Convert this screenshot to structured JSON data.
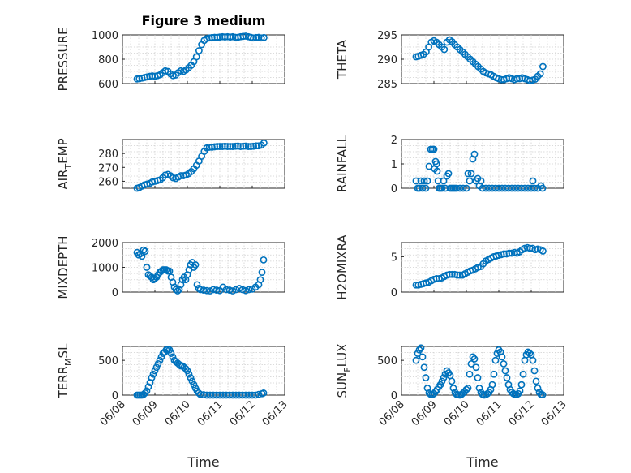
{
  "figure": {
    "title": "Figure 3 medium",
    "marker_color": "#0072BD",
    "xlabel": "Time"
  },
  "chart_data": [
    {
      "type": "scatter",
      "ylabel": "PRESSURE",
      "ylim": [
        600,
        1000
      ],
      "yticks": [
        600,
        800,
        1000
      ],
      "xlim": [
        "06/08",
        "06/13"
      ],
      "xticks": [
        "06/08",
        "06/09",
        "06/10",
        "06/11",
        "06/12",
        "06/13"
      ],
      "x": [
        8.45,
        8.52,
        8.6,
        8.68,
        8.76,
        8.84,
        8.92,
        9,
        9.08,
        9.16,
        9.24,
        9.32,
        9.4,
        9.48,
        9.56,
        9.64,
        9.72,
        9.8,
        9.88,
        9.96,
        10.04,
        10.12,
        10.2,
        10.28,
        10.36,
        10.44,
        10.52,
        10.6,
        10.68,
        10.76,
        10.84,
        10.92,
        11,
        11.08,
        11.16,
        11.24,
        11.32,
        11.4,
        11.48,
        11.56,
        11.64,
        11.72,
        11.8,
        11.88,
        11.96,
        12.04,
        12.12,
        12.2,
        12.28,
        12.36
      ],
      "y": [
        638,
        640,
        645,
        650,
        655,
        660,
        663,
        660,
        665,
        672,
        690,
        705,
        700,
        680,
        665,
        670,
        690,
        705,
        700,
        712,
        730,
        750,
        780,
        820,
        870,
        920,
        955,
        970,
        975,
        978,
        980,
        980,
        982,
        985,
        983,
        985,
        982,
        985,
        980,
        980,
        985,
        988,
        990,
        985,
        980,
        975,
        978,
        980,
        975,
        978
      ],
      "grid": true
    },
    {
      "type": "scatter",
      "ylabel": "THETA",
      "ylim": [
        285,
        295
      ],
      "yticks": [
        285,
        290,
        295
      ],
      "xlim": [
        "06/08",
        "06/13"
      ],
      "xticks": [
        "06/08",
        "06/09",
        "06/10",
        "06/11",
        "06/12",
        "06/13"
      ],
      "x": [
        8.45,
        8.52,
        8.6,
        8.68,
        8.76,
        8.84,
        8.92,
        9,
        9.08,
        9.16,
        9.24,
        9.32,
        9.4,
        9.48,
        9.56,
        9.64,
        9.72,
        9.8,
        9.88,
        9.96,
        10.04,
        10.12,
        10.2,
        10.28,
        10.36,
        10.44,
        10.52,
        10.6,
        10.68,
        10.76,
        10.84,
        10.92,
        11,
        11.08,
        11.16,
        11.24,
        11.32,
        11.4,
        11.48,
        11.56,
        11.64,
        11.72,
        11.8,
        11.88,
        11.96,
        12.04,
        12.12,
        12.2,
        12.28,
        12.36
      ],
      "y": [
        290.5,
        290.6,
        290.8,
        291.0,
        291.5,
        292.5,
        293.5,
        293.8,
        293.5,
        293.0,
        292.5,
        292.0,
        293.5,
        294.0,
        293.6,
        293.0,
        292.5,
        292.0,
        291.5,
        291.0,
        290.5,
        290.0,
        289.5,
        289.0,
        288.5,
        288.0,
        287.5,
        287.2,
        287.0,
        286.8,
        286.5,
        286.2,
        286.0,
        285.8,
        285.8,
        286.0,
        286.2,
        286.0,
        285.8,
        286.0,
        286.0,
        286.2,
        286.0,
        285.8,
        285.6,
        285.7,
        285.9,
        286.5,
        287.0,
        288.5
      ],
      "grid": true
    },
    {
      "type": "scatter",
      "ylabel": "AIR_TEMP",
      "ylim": [
        255,
        290
      ],
      "yticks": [
        260,
        270,
        280
      ],
      "xlim": [
        "06/08",
        "06/13"
      ],
      "xticks": [
        "06/08",
        "06/09",
        "06/10",
        "06/11",
        "06/12",
        "06/13"
      ],
      "x": [
        8.45,
        8.52,
        8.6,
        8.68,
        8.76,
        8.84,
        8.92,
        9,
        9.08,
        9.16,
        9.24,
        9.32,
        9.4,
        9.48,
        9.56,
        9.64,
        9.72,
        9.8,
        9.88,
        9.96,
        10.04,
        10.12,
        10.2,
        10.28,
        10.36,
        10.44,
        10.52,
        10.6,
        10.68,
        10.76,
        10.84,
        10.92,
        11,
        11.08,
        11.16,
        11.24,
        11.32,
        11.4,
        11.48,
        11.56,
        11.64,
        11.72,
        11.8,
        11.88,
        11.96,
        12.04,
        12.12,
        12.2,
        12.28,
        12.36
      ],
      "y": [
        255,
        255.5,
        256.5,
        257.5,
        258,
        258.5,
        259.5,
        260,
        260.5,
        261,
        262.5,
        264.5,
        265,
        264,
        262.5,
        262,
        263,
        264,
        264,
        264.5,
        265.5,
        267,
        269,
        271.5,
        274.5,
        278,
        281.5,
        284,
        284.5,
        284.5,
        284.8,
        285,
        285,
        285,
        285.2,
        285,
        285,
        285,
        285.2,
        285.3,
        285,
        285.2,
        285.3,
        285,
        285,
        285.2,
        285.5,
        285.5,
        286,
        287.5
      ],
      "grid": true
    },
    {
      "type": "scatter",
      "ylabel": "RAINFALL",
      "ylim": [
        0,
        2
      ],
      "yticks": [
        0,
        1,
        2
      ],
      "xlim": [
        "06/08",
        "06/13"
      ],
      "xticks": [
        "06/08",
        "06/09",
        "06/10",
        "06/11",
        "06/12",
        "06/13"
      ],
      "x": [
        8.45,
        8.5,
        8.55,
        8.6,
        8.65,
        8.7,
        8.75,
        8.8,
        8.85,
        8.9,
        8.95,
        9.0,
        9.02,
        9.05,
        9.08,
        9.1,
        9.13,
        9.16,
        9.2,
        9.25,
        9.3,
        9.35,
        9.4,
        9.45,
        9.5,
        9.55,
        9.6,
        9.65,
        9.7,
        9.8,
        9.9,
        10.0,
        10.05,
        10.1,
        10.15,
        10.2,
        10.25,
        10.3,
        10.35,
        10.4,
        10.45,
        10.5,
        10.6,
        10.7,
        10.8,
        10.9,
        11.0,
        11.1,
        11.2,
        11.3,
        11.4,
        11.5,
        11.6,
        11.7,
        11.8,
        11.9,
        12.0,
        12.05,
        12.1,
        12.2,
        12.3,
        12.35
      ],
      "y": [
        0.3,
        0,
        0,
        0.3,
        0,
        0.3,
        0,
        0.3,
        0.9,
        1.6,
        1.6,
        1.6,
        0.8,
        1.1,
        1.0,
        0.7,
        0.3,
        0,
        0,
        0,
        0.3,
        0,
        0.5,
        0.6,
        0,
        0,
        0,
        0,
        0,
        0,
        0,
        0,
        0.6,
        0.3,
        0.6,
        1.2,
        1.4,
        0.3,
        0.4,
        0.1,
        0.3,
        0,
        0,
        0,
        0,
        0,
        0,
        0,
        0,
        0,
        0,
        0,
        0,
        0,
        0,
        0,
        0,
        0.3,
        0,
        0,
        0.1,
        0
      ],
      "grid": true
    },
    {
      "type": "scatter",
      "ylabel": "MIXDEPTH",
      "ylim": [
        0,
        2000
      ],
      "yticks": [
        0,
        1000,
        2000
      ],
      "xlim": [
        "06/08",
        "06/13"
      ],
      "xticks": [
        "06/08",
        "06/09",
        "06/10",
        "06/11",
        "06/12",
        "06/13"
      ],
      "x": [
        8.45,
        8.5,
        8.55,
        8.6,
        8.65,
        8.7,
        8.75,
        8.8,
        8.85,
        8.9,
        8.95,
        9.0,
        9.05,
        9.1,
        9.15,
        9.2,
        9.25,
        9.3,
        9.35,
        9.4,
        9.45,
        9.5,
        9.55,
        9.6,
        9.65,
        9.7,
        9.75,
        9.8,
        9.85,
        9.9,
        9.95,
        10.0,
        10.05,
        10.1,
        10.15,
        10.2,
        10.25,
        10.3,
        10.35,
        10.4,
        10.5,
        10.6,
        10.7,
        10.8,
        10.9,
        11.0,
        11.1,
        11.2,
        11.3,
        11.4,
        11.5,
        11.6,
        11.7,
        11.8,
        11.9,
        12.0,
        12.1,
        12.2,
        12.25,
        12.3,
        12.35
      ],
      "y": [
        1600,
        1500,
        1550,
        1450,
        1700,
        1650,
        1000,
        700,
        650,
        600,
        500,
        550,
        600,
        700,
        800,
        850,
        900,
        900,
        900,
        850,
        850,
        600,
        400,
        200,
        100,
        50,
        100,
        300,
        500,
        600,
        500,
        700,
        900,
        1100,
        1200,
        1000,
        1100,
        300,
        150,
        100,
        80,
        60,
        50,
        100,
        80,
        60,
        200,
        100,
        80,
        50,
        100,
        150,
        100,
        60,
        100,
        120,
        200,
        300,
        500,
        800,
        1300
      ],
      "grid": true
    },
    {
      "type": "scatter",
      "ylabel": "H2OMIXRA",
      "ylim": [
        0,
        7
      ],
      "yticks": [
        0,
        5
      ],
      "xlim": [
        "06/08",
        "06/13"
      ],
      "xticks": [
        "06/08",
        "06/09",
        "06/10",
        "06/11",
        "06/12",
        "06/13"
      ],
      "x": [
        8.45,
        8.52,
        8.6,
        8.68,
        8.76,
        8.84,
        8.92,
        9,
        9.08,
        9.16,
        9.24,
        9.32,
        9.4,
        9.48,
        9.56,
        9.64,
        9.72,
        9.8,
        9.88,
        9.96,
        10.04,
        10.12,
        10.2,
        10.28,
        10.36,
        10.44,
        10.52,
        10.6,
        10.68,
        10.76,
        10.84,
        10.92,
        11,
        11.08,
        11.16,
        11.24,
        11.32,
        11.4,
        11.48,
        11.56,
        11.64,
        11.72,
        11.8,
        11.88,
        11.96,
        12.04,
        12.12,
        12.2,
        12.28,
        12.36
      ],
      "y": [
        1.0,
        1.0,
        1.1,
        1.2,
        1.3,
        1.4,
        1.6,
        1.8,
        1.9,
        1.9,
        2.0,
        2.2,
        2.4,
        2.5,
        2.5,
        2.5,
        2.4,
        2.4,
        2.4,
        2.6,
        2.8,
        3.0,
        3.1,
        3.3,
        3.5,
        3.6,
        4.0,
        4.4,
        4.6,
        4.8,
        5.0,
        5.1,
        5.2,
        5.3,
        5.4,
        5.4,
        5.5,
        5.5,
        5.6,
        5.5,
        5.7,
        6.0,
        6.2,
        6.3,
        6.2,
        6.2,
        6.0,
        6.1,
        6.0,
        5.8
      ],
      "grid": true
    },
    {
      "type": "scatter",
      "ylabel": "TERR_MSL",
      "ylim": [
        0,
        700
      ],
      "yticks": [
        0,
        500
      ],
      "xlim": [
        "06/08",
        "06/13"
      ],
      "xticks": [
        "06/08",
        "06/09",
        "06/10",
        "06/11",
        "06/12",
        "06/13"
      ],
      "x": [
        8.45,
        8.5,
        8.55,
        8.6,
        8.65,
        8.7,
        8.75,
        8.8,
        8.85,
        8.9,
        8.95,
        9.0,
        9.05,
        9.1,
        9.15,
        9.2,
        9.25,
        9.3,
        9.35,
        9.4,
        9.45,
        9.5,
        9.55,
        9.6,
        9.65,
        9.7,
        9.75,
        9.8,
        9.85,
        9.9,
        9.95,
        10.0,
        10.05,
        10.1,
        10.15,
        10.2,
        10.25,
        10.3,
        10.35,
        10.4,
        10.5,
        10.6,
        10.7,
        10.8,
        10.9,
        11.0,
        11.1,
        11.2,
        11.3,
        11.4,
        11.5,
        11.6,
        11.7,
        11.8,
        11.9,
        12.0,
        12.1,
        12.2,
        12.3,
        12.35
      ],
      "y": [
        0,
        0,
        0,
        0,
        10,
        30,
        60,
        120,
        180,
        250,
        300,
        350,
        400,
        450,
        500,
        550,
        600,
        620,
        650,
        660,
        650,
        600,
        550,
        500,
        480,
        460,
        440,
        420,
        420,
        400,
        380,
        350,
        300,
        250,
        200,
        150,
        100,
        60,
        30,
        10,
        5,
        0,
        0,
        0,
        0,
        0,
        0,
        0,
        0,
        0,
        0,
        0,
        0,
        0,
        0,
        0,
        0,
        10,
        20,
        30
      ],
      "grid": true
    },
    {
      "type": "scatter",
      "ylabel": "SUN_FLUX",
      "ylim": [
        0,
        700
      ],
      "yticks": [
        0,
        500
      ],
      "xlim": [
        "06/08",
        "06/13"
      ],
      "xticks": [
        "06/08",
        "06/09",
        "06/10",
        "06/11",
        "06/12",
        "06/13"
      ],
      "x": [
        8.45,
        8.5,
        8.55,
        8.6,
        8.65,
        8.7,
        8.75,
        8.8,
        8.85,
        8.9,
        8.95,
        9.0,
        9.05,
        9.1,
        9.15,
        9.2,
        9.25,
        9.3,
        9.35,
        9.4,
        9.45,
        9.5,
        9.55,
        9.6,
        9.65,
        9.7,
        9.75,
        9.8,
        9.85,
        9.9,
        9.95,
        10.0,
        10.05,
        10.1,
        10.15,
        10.2,
        10.25,
        10.3,
        10.35,
        10.4,
        10.45,
        10.5,
        10.55,
        10.6,
        10.65,
        10.7,
        10.75,
        10.8,
        10.85,
        10.9,
        10.95,
        11.0,
        11.05,
        11.1,
        11.15,
        11.2,
        11.25,
        11.3,
        11.35,
        11.4,
        11.45,
        11.5,
        11.55,
        11.6,
        11.65,
        11.7,
        11.75,
        11.8,
        11.85,
        11.9,
        11.95,
        12.0,
        12.05,
        12.1,
        12.15,
        12.2,
        12.25,
        12.3,
        12.35
      ],
      "y": [
        500,
        600,
        650,
        680,
        550,
        400,
        250,
        100,
        30,
        10,
        5,
        20,
        50,
        80,
        120,
        150,
        200,
        250,
        300,
        350,
        320,
        280,
        200,
        100,
        40,
        10,
        5,
        0,
        10,
        30,
        50,
        80,
        100,
        300,
        450,
        550,
        520,
        400,
        250,
        100,
        40,
        10,
        0,
        5,
        20,
        40,
        80,
        150,
        300,
        500,
        600,
        650,
        620,
        550,
        450,
        350,
        250,
        150,
        80,
        40,
        20,
        10,
        5,
        20,
        60,
        150,
        300,
        500,
        580,
        620,
        600,
        580,
        500,
        350,
        200,
        100,
        40,
        10,
        5
      ],
      "grid": true
    }
  ]
}
